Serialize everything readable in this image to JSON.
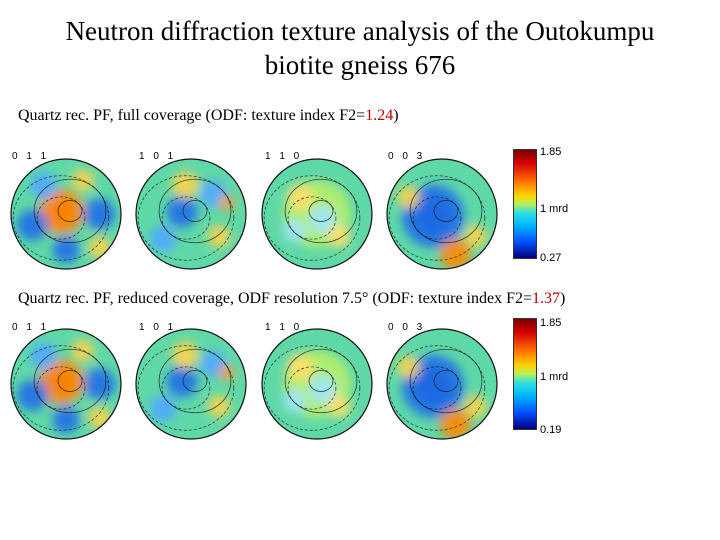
{
  "title": {
    "line1": "Neutron diffraction texture analysis of the Outokumpu",
    "line2": "biotite gneiss 676"
  },
  "rows": [
    {
      "caption_prefix": "Quartz rec. PF, full coverage (ODF: texture index F2=",
      "caption_index": "1.24",
      "caption_suffix": ")",
      "pole_figures": [
        {
          "label": "0 1 1",
          "pattern": "011"
        },
        {
          "label": "1 0 1",
          "pattern": "101"
        },
        {
          "label": "1 1 0",
          "pattern": "110"
        },
        {
          "label": "0 0 3",
          "pattern": "003"
        }
      ],
      "colorbar": {
        "max": "1.85",
        "mid": "1 mrd",
        "min": "0.27"
      }
    },
    {
      "caption_prefix": "Quartz rec. PF, reduced coverage, ODF resolution 7.5° (ODF: texture index F2=",
      "caption_index": "1.37",
      "caption_suffix": ")",
      "pole_figures": [
        {
          "label": "0 1 1",
          "pattern": "011"
        },
        {
          "label": "1 0 1",
          "pattern": "101"
        },
        {
          "label": "1 1 0",
          "pattern": "110"
        },
        {
          "label": "0 0 3",
          "pattern": "003"
        }
      ],
      "colorbar": {
        "max": "1.85",
        "mid": "1 mrd",
        "min": "0.19"
      }
    }
  ],
  "colors": {
    "index": "#c00000"
  }
}
